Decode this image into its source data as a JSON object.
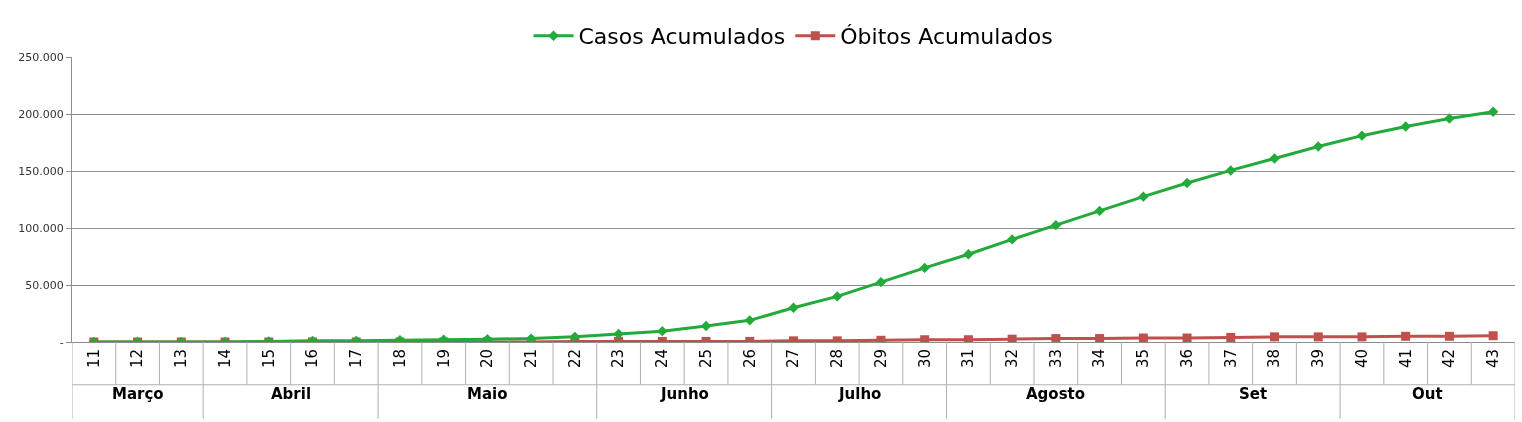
{
  "chart_data": {
    "type": "line",
    "categories": [
      "11",
      "12",
      "13",
      "14",
      "15",
      "16",
      "17",
      "18",
      "19",
      "20",
      "21",
      "22",
      "23",
      "24",
      "25",
      "26",
      "27",
      "28",
      "29",
      "30",
      "31",
      "32",
      "33",
      "34",
      "35",
      "36",
      "37",
      "38",
      "39",
      "40",
      "41",
      "42",
      "43"
    ],
    "series": [
      {
        "name": "Casos Acumulados",
        "color": "#22aa3a",
        "marker": "diamond",
        "values": [
          0,
          0,
          0,
          0,
          500,
          1000,
          1000,
          1500,
          2000,
          2500,
          3000,
          4500,
          7000,
          9500,
          14000,
          19000,
          30000,
          40000,
          52500,
          65000,
          77000,
          90000,
          102500,
          115000,
          127500,
          139500,
          150500,
          161000,
          171500,
          181000,
          189000,
          196000,
          202000
        ]
      },
      {
        "name": "Óbitos Acumulados",
        "color": "#c0504d",
        "marker": "square",
        "values": [
          0,
          0,
          0,
          0,
          0,
          0,
          0,
          0,
          0,
          0,
          0,
          500,
          500,
          500,
          500,
          500,
          1000,
          1000,
          1500,
          2000,
          2000,
          2500,
          3000,
          3000,
          3500,
          3500,
          4000,
          4500,
          4500,
          4500,
          5000,
          5000,
          5500
        ]
      }
    ],
    "ylim": [
      0,
      250000
    ],
    "yticks": [
      {
        "value": 0,
        "label": "-"
      },
      {
        "value": 50000,
        "label": "50.000"
      },
      {
        "value": 100000,
        "label": "100.000"
      },
      {
        "value": 150000,
        "label": "150.000"
      },
      {
        "value": 200000,
        "label": "200.000"
      },
      {
        "value": 250000,
        "label": "250.000"
      }
    ],
    "grid": "y",
    "legend": "top",
    "annotations": [
      "Março",
      "Abril",
      "Maio",
      "Junho",
      "Julho",
      "Agosto",
      "Set",
      "Out"
    ]
  }
}
